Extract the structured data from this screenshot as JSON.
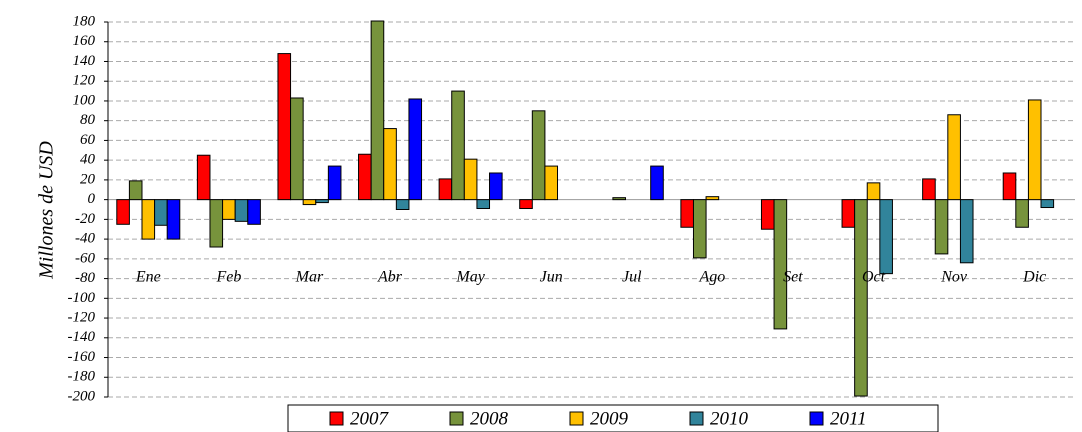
{
  "chart_data": {
    "type": "bar",
    "y_label": "Millones de USD",
    "categories": [
      "Ene",
      "Feb",
      "Mar",
      "Abr",
      "May",
      "Jun",
      "Jul",
      "Ago",
      "Set",
      "Oct",
      "Nov",
      "Dic"
    ],
    "series": [
      {
        "name": "2007",
        "color": "#ff0000",
        "values": [
          -25,
          45,
          148,
          46,
          21,
          -9,
          null,
          -28,
          -30,
          -28,
          21,
          27
        ]
      },
      {
        "name": "2008",
        "color": "#77933c",
        "values": [
          19,
          -48,
          103,
          181,
          110,
          90,
          2,
          -59,
          -131,
          -199,
          -55,
          -28
        ]
      },
      {
        "name": "2009",
        "color": "#ffc000",
        "values": [
          -40,
          -20,
          -5,
          72,
          41,
          34,
          null,
          3,
          null,
          17,
          86,
          101
        ]
      },
      {
        "name": "2010",
        "color": "#31849b",
        "values": [
          -26,
          -22,
          -3,
          -10,
          -9,
          null,
          null,
          null,
          null,
          -75,
          -64,
          -8
        ]
      },
      {
        "name": "2011",
        "color": "#0000ff",
        "values": [
          -40,
          -25,
          34,
          102,
          27,
          null,
          34,
          null,
          null,
          null,
          null,
          null
        ]
      }
    ],
    "ylim": [
      -200,
      180
    ],
    "yticks": [
      -200,
      -180,
      -160,
      -140,
      -120,
      -100,
      -80,
      -60,
      -40,
      -20,
      0,
      20,
      40,
      60,
      80,
      100,
      120,
      140,
      160,
      180
    ],
    "grid": true,
    "legend": "bottom"
  }
}
